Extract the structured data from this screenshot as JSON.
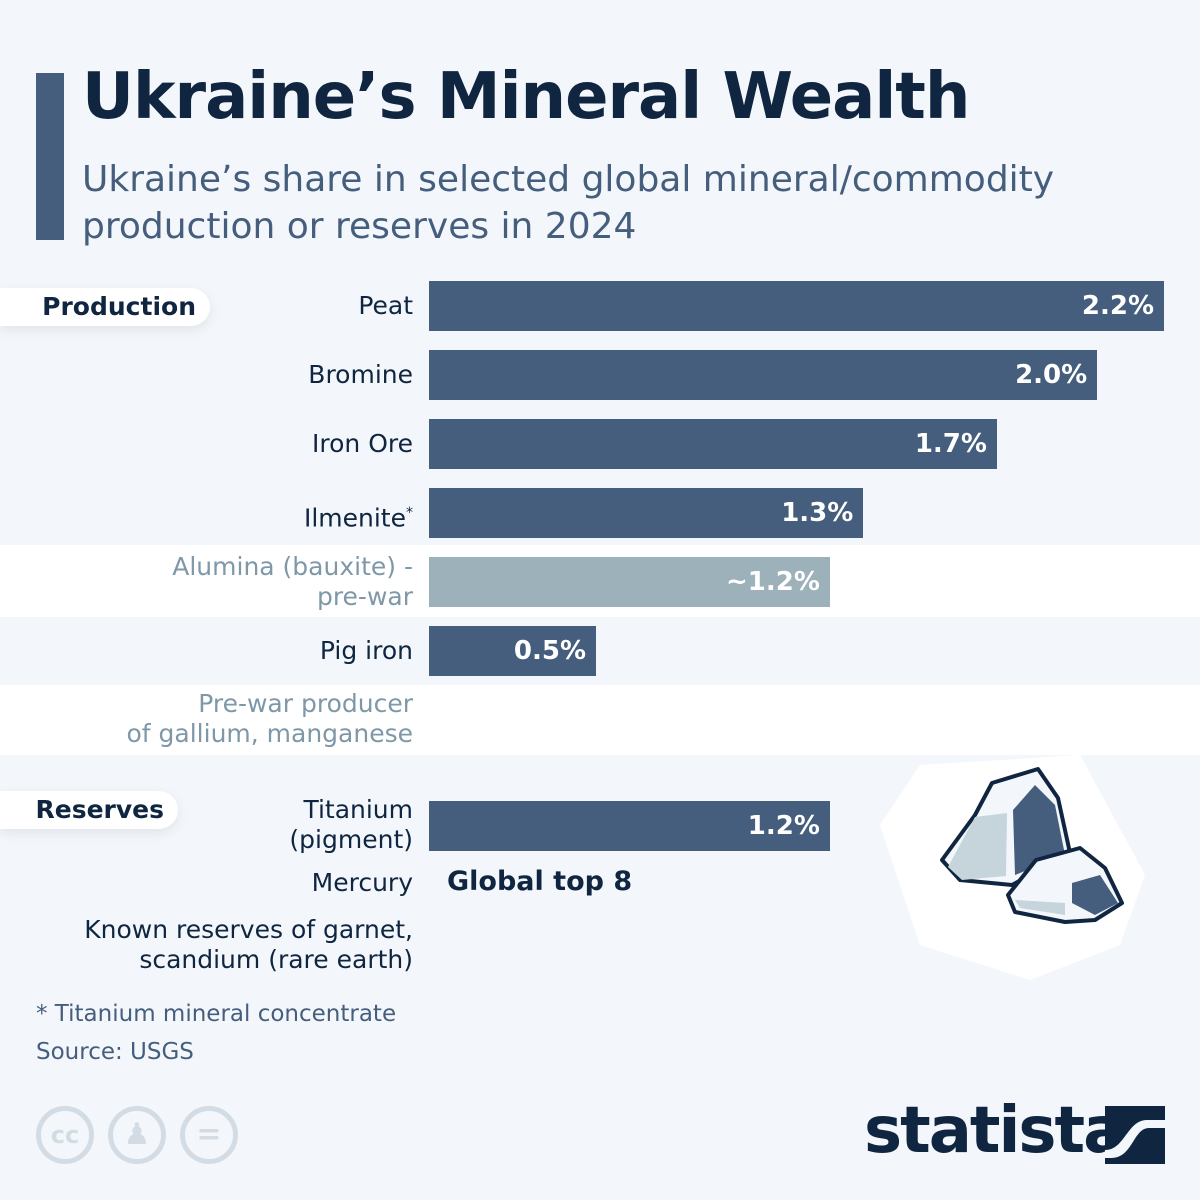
{
  "header": {
    "title": "Ukraine’s Mineral Wealth",
    "subtitle": "Ukraine’s share in selected global mineral/commodity production or reserves in 2024"
  },
  "chart_data": {
    "type": "bar",
    "orientation": "horizontal",
    "unit": "%",
    "sections": [
      {
        "name": "Production",
        "categories": [
          "Peat",
          "Bromine",
          "Iron Ore",
          "Ilmenite*",
          "Alumina (bauxite) - pre-war",
          "Pig iron"
        ],
        "values": [
          2.2,
          2.0,
          1.7,
          1.3,
          1.2,
          0.5
        ],
        "labels": [
          "2.2%",
          "2.0%",
          "1.7%",
          "1.3%",
          "~1.2%",
          "0.5%"
        ],
        "note": "Pre-war producer of gallium, manganese"
      },
      {
        "name": "Reserves",
        "categories": [
          "Titanium (pigment)",
          "Mercury",
          "Known reserves of garnet, scandium (rare earth)"
        ],
        "values": [
          1.2,
          null,
          null
        ],
        "labels": [
          "1.2%",
          "Global top 8",
          ""
        ]
      }
    ],
    "colors": {
      "bar": "#465e7d",
      "pre_war_bar": "#9cb1b9"
    }
  },
  "labels": {
    "production": "Production",
    "reserves": "Reserves",
    "peat": "Peat",
    "bromine": "Bromine",
    "iron_ore": "Iron Ore",
    "ilmenite": "Ilmenite",
    "asterisk": "*",
    "alumina_1": "Alumina (bauxite) -",
    "alumina_2": "pre-war",
    "pig_iron": "Pig iron",
    "prewar_1": "Pre-war producer",
    "prewar_2": "of gallium, manganese",
    "titanium_1": "Titanium",
    "titanium_2": "(pigment)",
    "mercury": "Mercury",
    "mercury_value": "Global top 8",
    "known_1": "Known reserves of garnet,",
    "known_2": "scandium (rare earth)"
  },
  "footer": {
    "footnote": "* Titanium mineral concentrate",
    "source": "Source: USGS",
    "logo": "statista",
    "cc": "cc",
    "eq": "="
  }
}
